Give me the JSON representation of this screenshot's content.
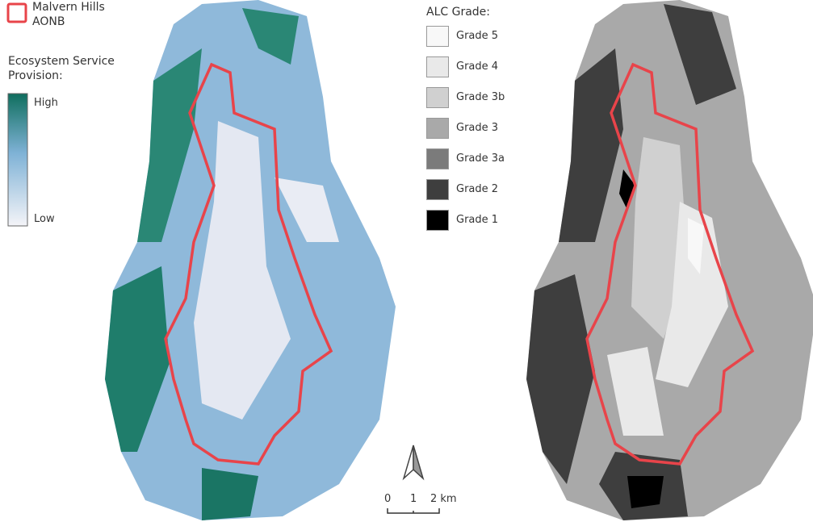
{
  "aonb_legend": {
    "label": "Malvern Hills AONB"
  },
  "ecosystem_legend": {
    "title": "Ecosystem Service Provision:",
    "high": "High",
    "low": "Low"
  },
  "alc_legend": {
    "title": "ALC Grade:",
    "grades": [
      {
        "label": "Grade 5",
        "color": "#f8f8f8"
      },
      {
        "label": "Grade 4",
        "color": "#e9e9e9"
      },
      {
        "label": "Grade 3b",
        "color": "#d0d0d0"
      },
      {
        "label": "Grade 3",
        "color": "#a9a9a9"
      },
      {
        "label": "Grade 3a",
        "color": "#7b7b7b"
      },
      {
        "label": "Grade 2",
        "color": "#3e3e3e"
      },
      {
        "label": "Grade 1",
        "color": "#000000"
      }
    ]
  },
  "scale_bar": {
    "labels": [
      "0",
      "1",
      "2 km"
    ]
  }
}
